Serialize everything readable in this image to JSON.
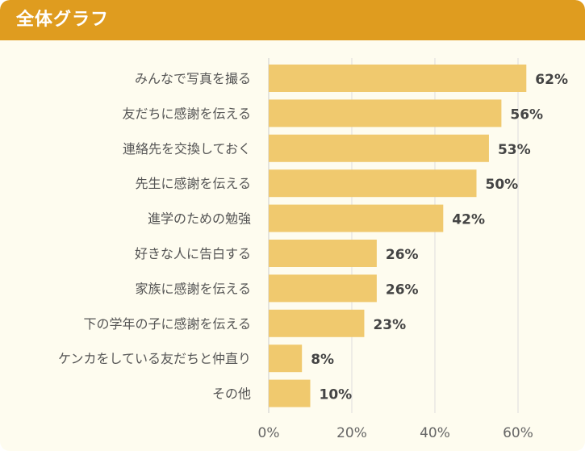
{
  "header": {
    "title": "全体グラフ"
  },
  "colors": {
    "header": "#df9c1f",
    "background": "#fefcef",
    "bar": "#f0c96e",
    "grid": "#dddddd"
  },
  "chart_data": {
    "type": "bar",
    "orientation": "horizontal",
    "title": "全体グラフ",
    "categories": [
      "みんなで写真を撮る",
      "友だちに感謝を伝える",
      "連絡先を交換しておく",
      "先生に感謝を伝える",
      "進学のための勉強",
      "好きな人に告白する",
      "家族に感謝を伝える",
      "下の学年の子に感謝を伝える",
      "ケンカをしている友だちと仲直り",
      "その他"
    ],
    "values": [
      62,
      56,
      53,
      50,
      42,
      26,
      26,
      23,
      8,
      10
    ],
    "value_labels": [
      "62%",
      "56%",
      "53%",
      "50%",
      "42%",
      "26%",
      "26%",
      "23%",
      "8%",
      "10%"
    ],
    "xlim": [
      0,
      70
    ],
    "x_ticks": [
      0,
      20,
      40,
      60
    ],
    "x_tick_labels": [
      "0%",
      "20%",
      "40%",
      "60%"
    ],
    "grid": true
  }
}
